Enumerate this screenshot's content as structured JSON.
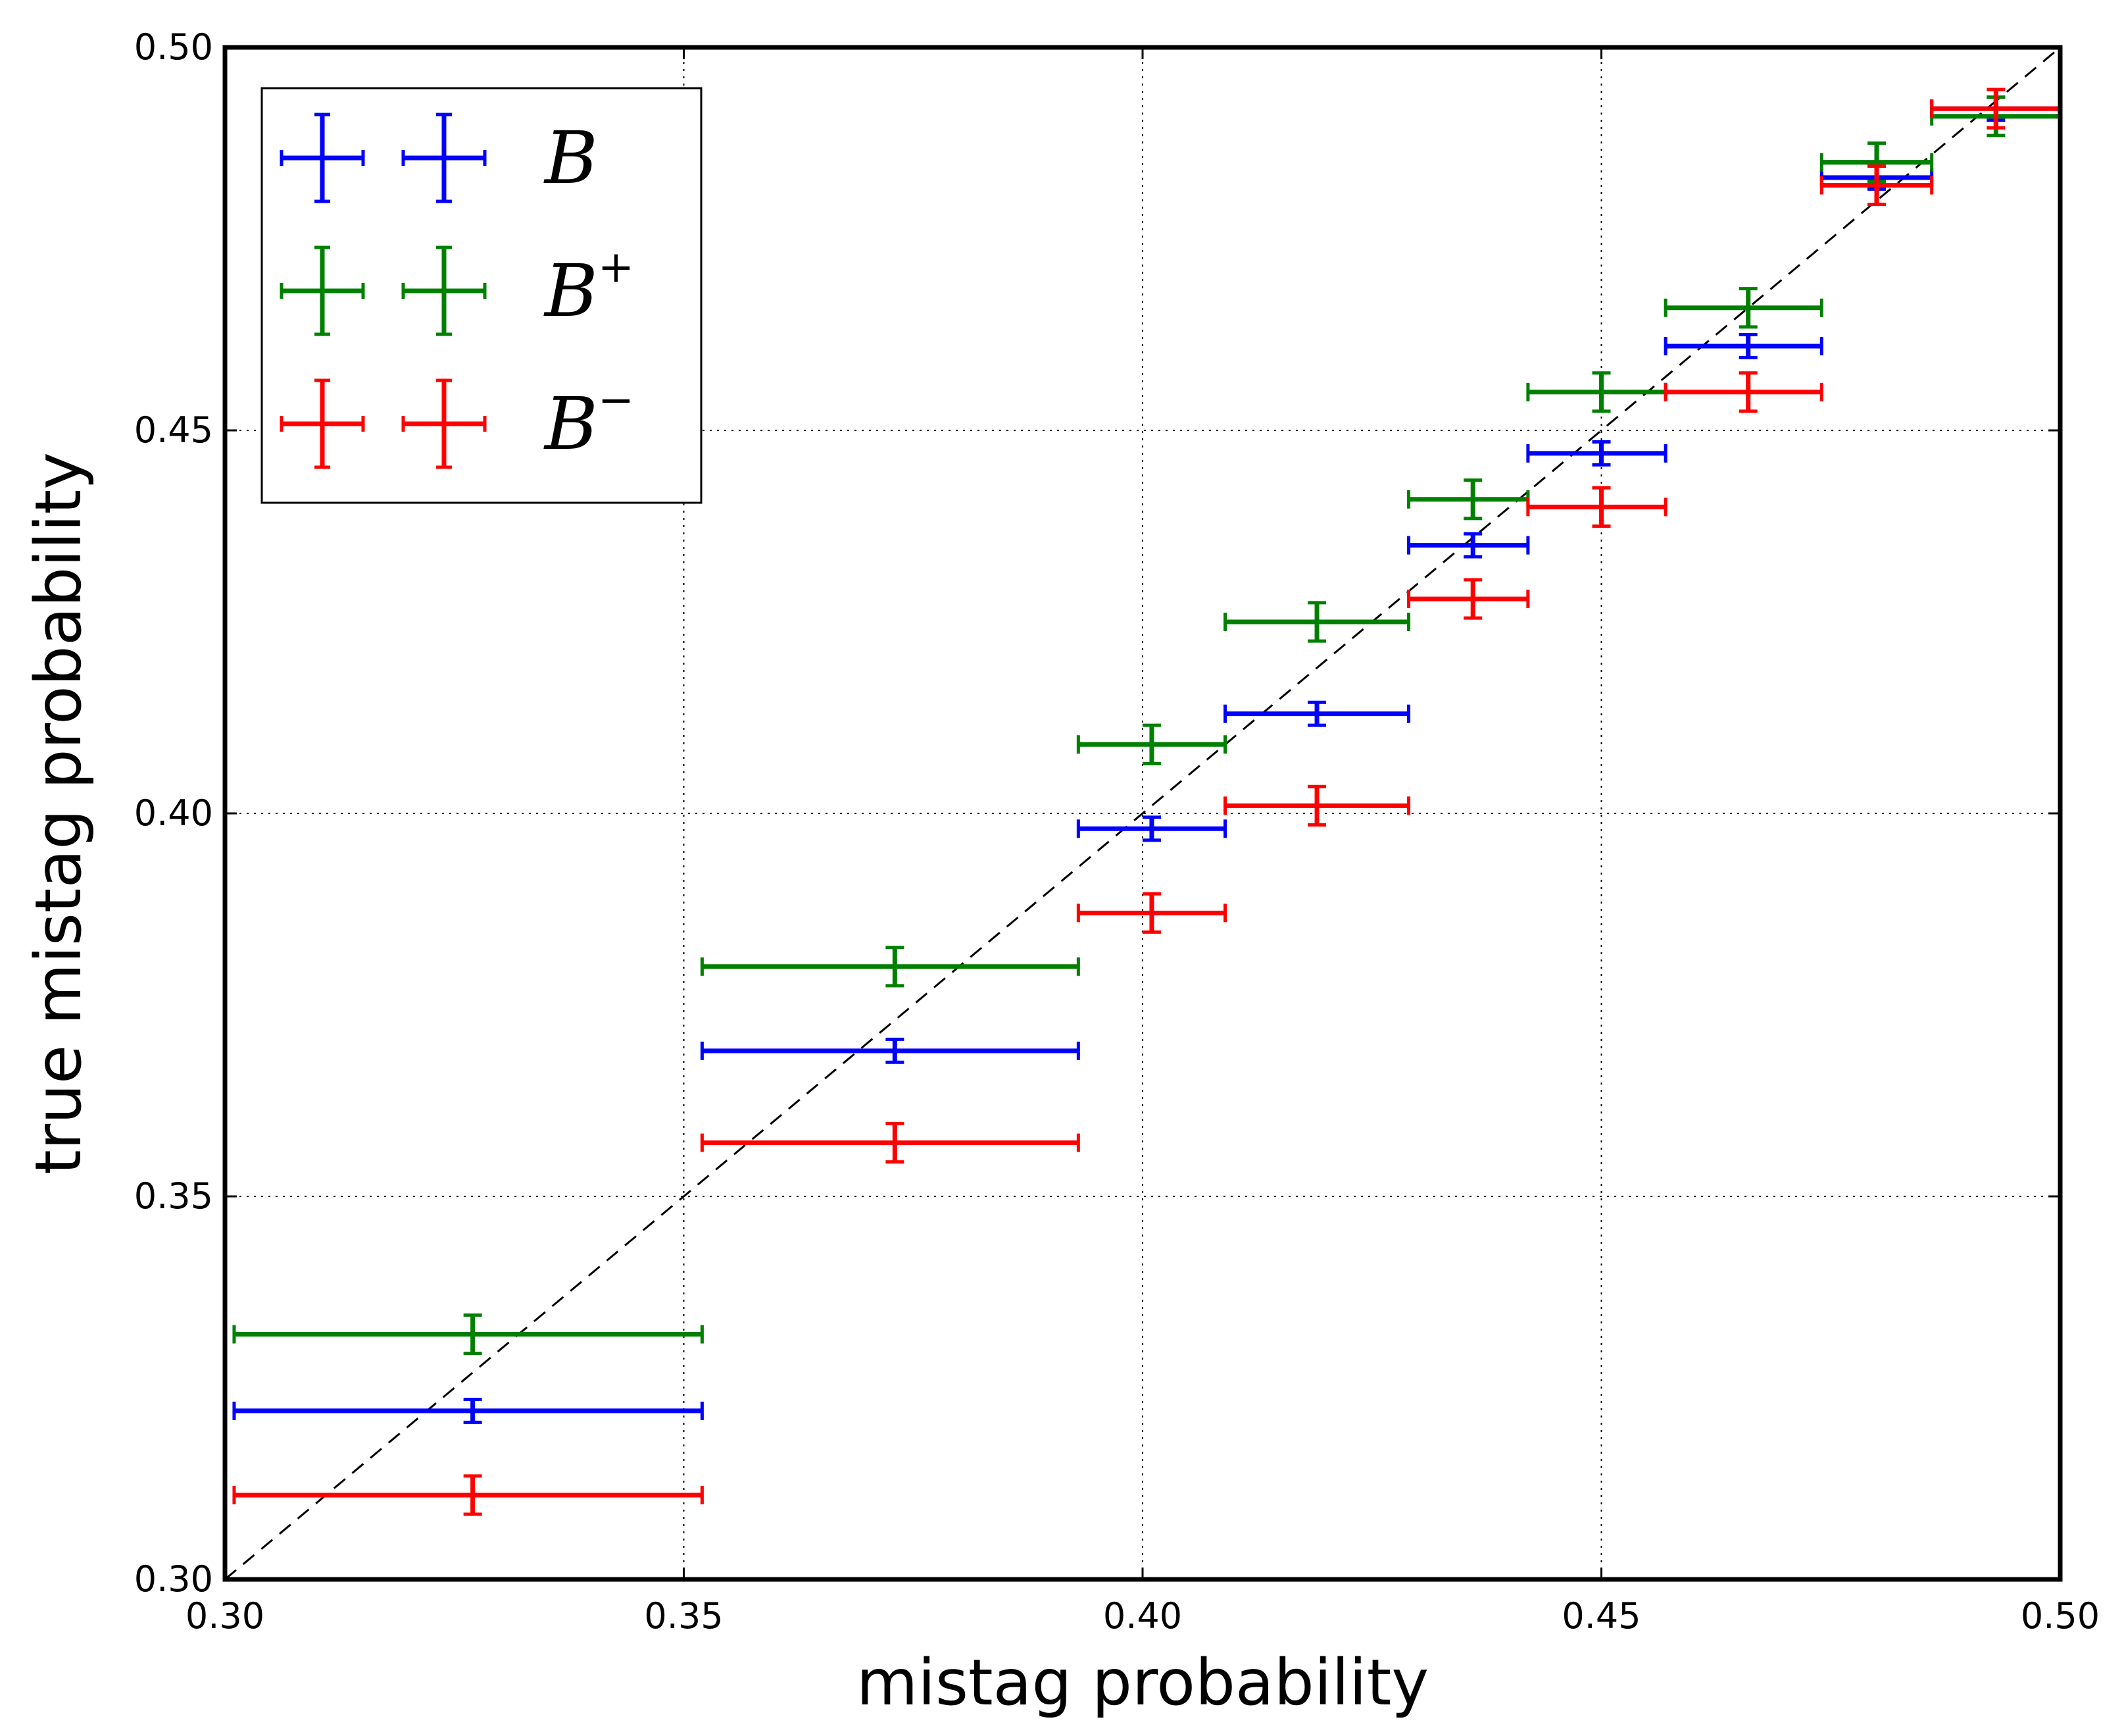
{
  "chart_data": {
    "type": "scatter",
    "title": "",
    "xlabel": "mistag probability",
    "ylabel": "true mistag probability",
    "xlim": [
      0.3,
      0.5
    ],
    "ylim": [
      0.3,
      0.5
    ],
    "xticks": [
      "0.30",
      "0.35",
      "0.40",
      "0.45",
      "0.50"
    ],
    "yticks": [
      "0.30",
      "0.35",
      "0.40",
      "0.45",
      "0.50"
    ],
    "grid": true,
    "reference_line": "diagonal y = x, black dashed",
    "legend": {
      "placement": "top-left",
      "entries": [
        {
          "base": "B",
          "sup": "",
          "color": "#0000ff"
        },
        {
          "base": "B",
          "sup": "+",
          "color": "#008000"
        },
        {
          "base": "B",
          "sup": "−",
          "color": "#ff0000"
        }
      ]
    },
    "bins": [
      {
        "xlo": 0.301,
        "xhi": 0.352,
        "x": 0.327
      },
      {
        "xlo": 0.352,
        "xhi": 0.393,
        "x": 0.373
      },
      {
        "xlo": 0.393,
        "xhi": 0.409,
        "x": 0.401
      },
      {
        "xlo": 0.409,
        "xhi": 0.429,
        "x": 0.419
      },
      {
        "xlo": 0.429,
        "xhi": 0.442,
        "x": 0.436
      },
      {
        "xlo": 0.442,
        "xhi": 0.457,
        "x": 0.45
      },
      {
        "xlo": 0.457,
        "xhi": 0.474,
        "x": 0.466
      },
      {
        "xlo": 0.474,
        "xhi": 0.486,
        "x": 0.48
      },
      {
        "xlo": 0.486,
        "xhi": 0.5,
        "x": 0.493
      }
    ],
    "series": [
      {
        "name": "B",
        "color": "#0000ff",
        "y": [
          0.322,
          0.369,
          0.398,
          0.413,
          0.435,
          0.447,
          0.461,
          0.483,
          0.492
        ],
        "yerr": [
          0.0015,
          0.0015,
          0.0015,
          0.0015,
          0.0015,
          0.0015,
          0.0015,
          0.0015,
          0.0015
        ]
      },
      {
        "name": "B+",
        "color": "#008000",
        "y": [
          0.332,
          0.38,
          0.409,
          0.425,
          0.441,
          0.455,
          0.466,
          0.485,
          0.491
        ],
        "yerr": [
          0.0025,
          0.0025,
          0.0025,
          0.0025,
          0.0025,
          0.0025,
          0.0025,
          0.0025,
          0.0025
        ]
      },
      {
        "name": "B−",
        "color": "#ff0000",
        "y": [
          0.311,
          0.357,
          0.387,
          0.401,
          0.428,
          0.44,
          0.455,
          0.482,
          0.492
        ],
        "yerr": [
          0.0025,
          0.0025,
          0.0025,
          0.0025,
          0.0025,
          0.0025,
          0.0025,
          0.0025,
          0.0025
        ]
      }
    ]
  }
}
